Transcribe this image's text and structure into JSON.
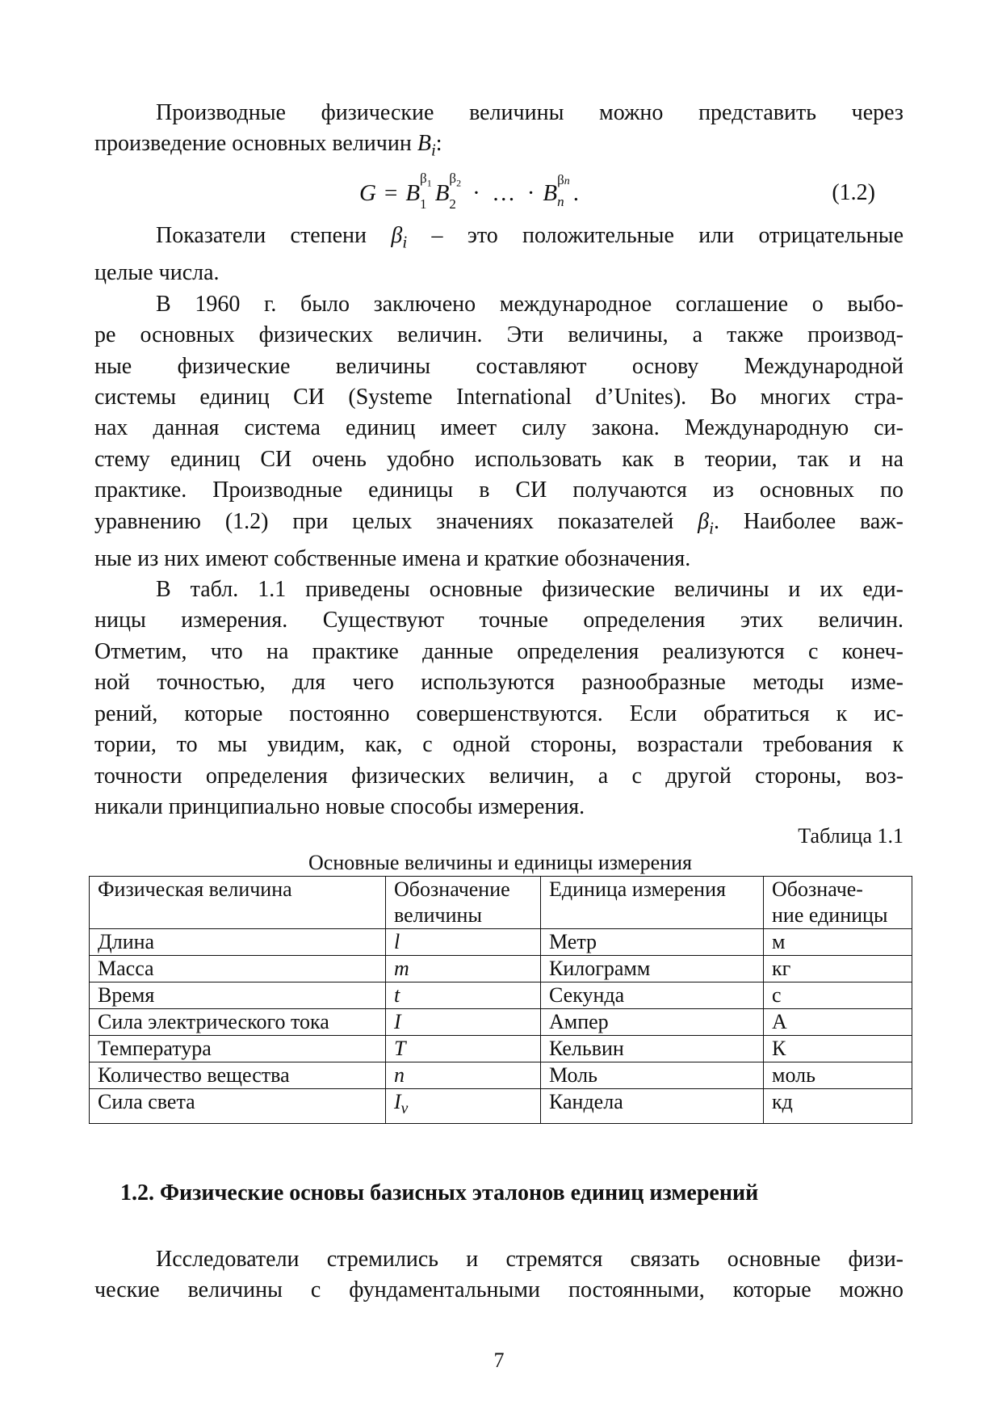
{
  "paragraph1": [
    "Производные физические величины можно представить через",
    "произведение основных величин B_i:"
  ],
  "formula": {
    "lhs": "G",
    "eq": "=",
    "base": "B",
    "sub1": "1",
    "sub2": "2",
    "subn": "n",
    "sup": "β",
    "dots": "·  …  ·",
    "end": ".",
    "number": "(1.2)"
  },
  "paragraph2": [
    "Показатели степени β_i – это положительные или отрицательные",
    "целые числа."
  ],
  "paragraph3": [
    "В 1960 г. было заключено международное  соглашение  о выбо-",
    "ре  основных физических величин. Эти величины, а также производ-",
    "ные  физические  величины  составляют  основу  Международной",
    "системы единиц СИ (Systeme International d’Unites). Во многих стра-",
    "нах данная система единиц имеет силу закона. Международную си-",
    "стему единиц СИ очень удобно использовать как в теории, так и на",
    "практике. Производные единицы в СИ получаются из основных по",
    "уравнению (1.2) при целых значениях показателей β_i. Наиболее важ-",
    "ные из них имеют собственные имена и краткие обозначения."
  ],
  "paragraph4": [
    "В табл. 1.1 приведены основные физические величины и их еди-",
    "ницы измерения. Существуют точные определения этих величин.",
    "Отметим, что на практике данные определения реализуются с конеч-",
    "ной точностью, для чего используются разнообразные методы изме-",
    "рений, которые постоянно совершенствуются. Если обратиться к ис-",
    "тории, то мы увидим, как, с одной стороны, возрастали требования к",
    "точности определения физических величин, а с другой стороны, воз-",
    "никали принципиально новые способы измерения."
  ],
  "table": {
    "label": "Таблица 1.1",
    "caption": "Основные величины и единицы измерения",
    "headers": [
      [
        "Физическая величина",
        ""
      ],
      [
        "Обозначение",
        "величины"
      ],
      [
        "Единица измерения",
        ""
      ],
      [
        "Обозначе-",
        "ние единицы"
      ]
    ],
    "rows": [
      [
        "Длина",
        "l",
        "Метр",
        "м"
      ],
      [
        "Масса",
        "m",
        "Килограмм",
        "кг"
      ],
      [
        "Время",
        "t",
        "Секунда",
        "с"
      ],
      [
        "Сила электрического тока",
        "I",
        "Ампер",
        "А"
      ],
      [
        "Температура",
        "T",
        "Кельвин",
        "К"
      ],
      [
        "Количество вещества",
        "n",
        "Моль",
        "моль"
      ],
      [
        "Сила света",
        "I_v",
        "Кандела",
        "кд"
      ]
    ]
  },
  "section_heading": "1.2. Физические основы базисных эталонов единиц измерений",
  "paragraph5": [
    "Исследователи стремились и стремятся связать основные физи-",
    "ческие величины с фундаментальными постоянными, которые можно"
  ],
  "page_number": "7"
}
